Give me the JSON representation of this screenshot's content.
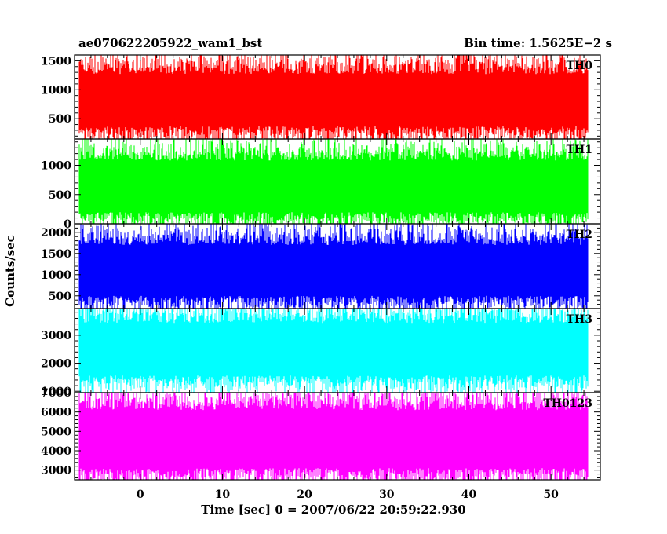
{
  "header": {
    "left": "ae070622205922_wam1_bst",
    "right": "Bin time: 1.5625E−2 s"
  },
  "chart_data": {
    "type": "line",
    "title": "ae070622205922_wam1_bst",
    "bin_time": "Bin time: 1.5625E−2 s",
    "xlabel": "Time [sec] 0 = 2007/06/22 20:59:22.930",
    "ylabel": "Counts/sec",
    "xlim": [
      -8,
      56
    ],
    "x_ticks": [
      0,
      10,
      20,
      30,
      40,
      50
    ],
    "x_tick_labels": [
      "0",
      "10",
      "20",
      "30",
      "40",
      "50"
    ],
    "data_x_range": [
      -8,
      56
    ],
    "panels": [
      {
        "name": "TH0",
        "color": "#ff0000",
        "ylim": [
          150,
          1600
        ],
        "y_ticks": [
          500,
          1000,
          1500
        ],
        "y_tick_labels": [
          "500",
          "1000",
          "1500"
        ],
        "mean": 820,
        "typical_min": 250,
        "typical_max": 1450
      },
      {
        "name": "TH1",
        "color": "#00ff00",
        "ylim": [
          0,
          1450
        ],
        "y_ticks": [
          0,
          500,
          1000
        ],
        "y_tick_labels": [
          "0",
          "500",
          "1000"
        ],
        "mean": 640,
        "typical_min": 120,
        "typical_max": 1300
      },
      {
        "name": "TH2",
        "color": "#0000ff",
        "ylim": [
          200,
          2200
        ],
        "y_ticks": [
          500,
          1000,
          1500,
          2000
        ],
        "y_tick_labels": [
          "500",
          "1000",
          "1500",
          "2000"
        ],
        "mean": 1100,
        "typical_min": 400,
        "typical_max": 2000
      },
      {
        "name": "TH3",
        "color": "#00ffff",
        "ylim": [
          950,
          3950
        ],
        "y_ticks": [
          1000,
          2000,
          3000
        ],
        "y_tick_labels": [
          "1000",
          "2000",
          "3000"
        ],
        "mean": 2500,
        "typical_min": 1200,
        "typical_max": 3700
      },
      {
        "name": "TH0123",
        "color": "#ff00ff",
        "ylim": [
          2500,
          7000
        ],
        "y_ticks": [
          3000,
          4000,
          5000,
          6000,
          7000
        ],
        "y_tick_labels": [
          "3000",
          "4000",
          "5000",
          "6000",
          "7000"
        ],
        "mean": 4600,
        "typical_min": 2800,
        "typical_max": 6800
      }
    ]
  }
}
